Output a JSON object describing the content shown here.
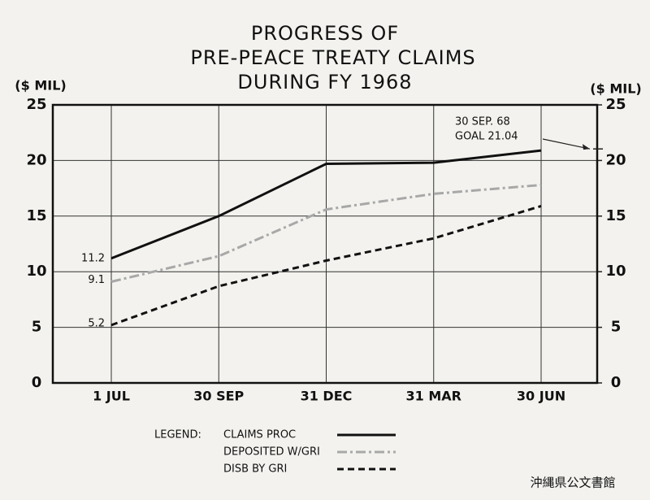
{
  "chart_data": {
    "type": "line",
    "title": [
      "PROGRESS OF",
      "PRE-PEACE TREATY CLAIMS",
      "DURING FY 1968"
    ],
    "y_label": "($ MIL)",
    "y2_label": "($ MIL)",
    "categories": [
      "1 JUL",
      "30 SEP",
      "31 DEC",
      "31 MAR",
      "30 JUN"
    ],
    "series": [
      {
        "name": "CLAIMS PROC",
        "color": "#111111",
        "style": "solid",
        "values": [
          11.2,
          15.0,
          19.7,
          19.8,
          20.9
        ]
      },
      {
        "name": "DEPOSITED W/GRI",
        "color": "#a8a8a8",
        "style": "dashdot",
        "values": [
          9.1,
          11.4,
          15.6,
          17.0,
          17.8
        ]
      },
      {
        "name": "DISB BY GRI",
        "color": "#111111",
        "style": "dashed",
        "values": [
          5.2,
          8.7,
          11.0,
          13.0,
          15.9
        ]
      }
    ],
    "ylim": [
      0,
      25
    ],
    "yticks": [
      0,
      5,
      10,
      15,
      20,
      25
    ],
    "y2lim": [
      0,
      25
    ],
    "y2ticks": [
      0,
      5,
      10,
      15,
      20,
      25
    ],
    "grid": true,
    "legend_title": "LEGEND:",
    "annotation": {
      "lines": [
        "30 SEP. 68",
        "GOAL 21.04"
      ],
      "value": 21.04
    },
    "watermark": "沖縄県公文書館"
  }
}
